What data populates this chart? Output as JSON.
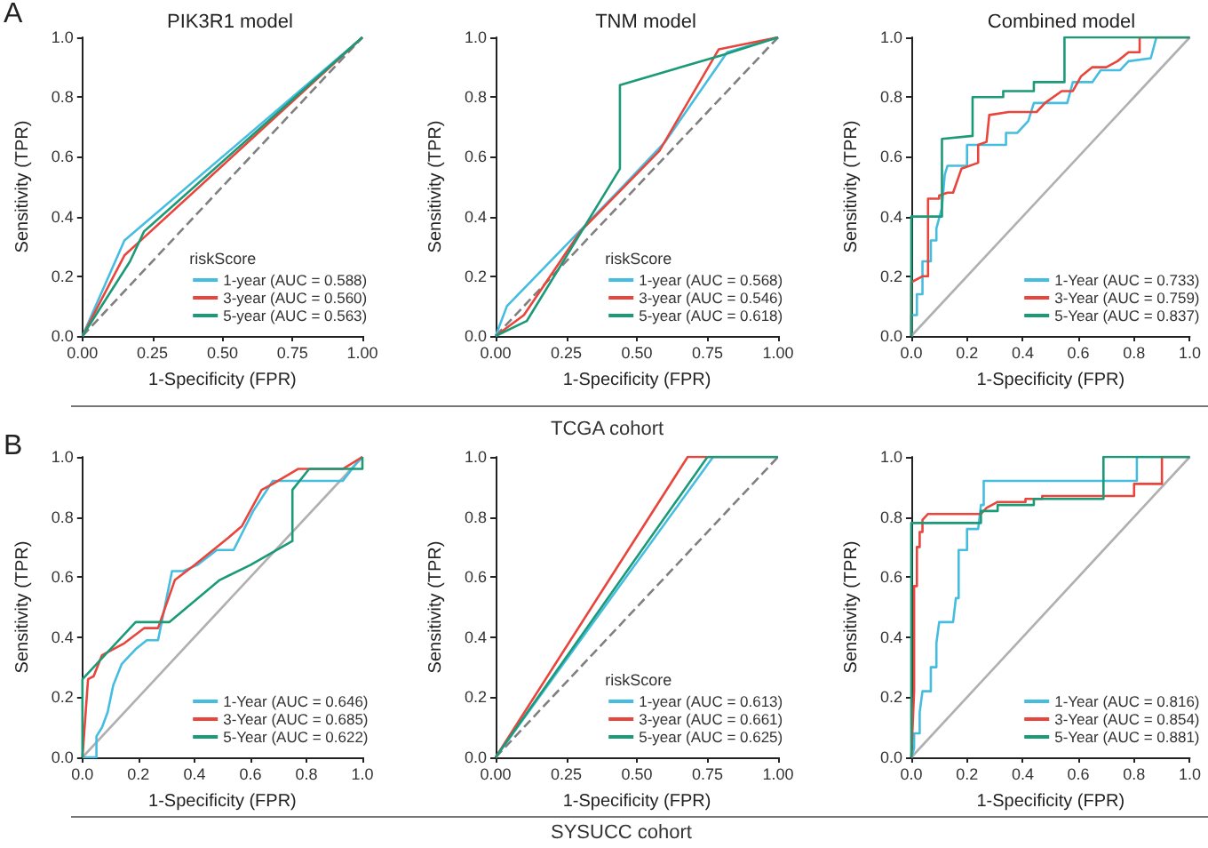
{
  "chart_data": [
    {
      "type": "line",
      "title": "PIK3R1 model",
      "xlabel": "1-Specificity (FPR)",
      "ylabel": "Sensitivity (TPR)",
      "legend_title": "riskScore",
      "legend": "bottom right",
      "marker": "none",
      "annotations": [
        "A"
      ],
      "xlim": [
        0,
        1
      ],
      "ylim": [
        0,
        1
      ],
      "xticks": [
        {
          "value": 0,
          "label": "0.00"
        },
        {
          "value": 0.25,
          "label": "0.25"
        },
        {
          "value": 0.5,
          "label": "0.50"
        },
        {
          "value": 0.75,
          "label": "0.75"
        },
        {
          "value": 1,
          "label": "1.00"
        }
      ],
      "yticks": [
        {
          "value": 0,
          "label": "0.0"
        },
        {
          "value": 0.2,
          "label": "0.2"
        },
        {
          "value": 0.4,
          "label": "0.4"
        },
        {
          "value": 0.6,
          "label": "0.6"
        },
        {
          "value": 0.8,
          "label": "0.8"
        },
        {
          "value": 1,
          "label": "1.0"
        }
      ],
      "series": [
        {
          "color": "#808080",
          "line_style": "dashed",
          "x": [
            0,
            1
          ],
          "values": [
            0,
            1
          ]
        },
        {
          "name": "1-year (AUC = 0.588)",
          "color": "#45bde0",
          "x": [
            0,
            0.15,
            1
          ],
          "values": [
            0,
            0.32,
            1
          ]
        },
        {
          "name": "3-year (AUC = 0.560)",
          "color": "#e8453c",
          "x": [
            0,
            0.15,
            0.22,
            1
          ],
          "values": [
            0,
            0.27,
            0.33,
            1
          ]
        },
        {
          "name": "5-year (AUC = 0.563)",
          "color": "#1b9a78",
          "x": [
            0,
            0.17,
            0.22,
            1
          ],
          "values": [
            0,
            0.25,
            0.35,
            1
          ]
        }
      ]
    },
    {
      "type": "line",
      "title": "TNM model",
      "xlabel": "1-Specificity (FPR)",
      "ylabel": "Sensitivity (TPR)",
      "legend_title": "riskScore",
      "legend": "bottom right",
      "marker": "none",
      "annotations": [
        "TCGA cohort"
      ],
      "xlim": [
        0,
        1
      ],
      "ylim": [
        0,
        1
      ],
      "xticks": [
        {
          "value": 0,
          "label": "0.00"
        },
        {
          "value": 0.25,
          "label": "0.25"
        },
        {
          "value": 0.5,
          "label": "0.50"
        },
        {
          "value": 0.75,
          "label": "0.75"
        },
        {
          "value": 1,
          "label": "1.00"
        }
      ],
      "yticks": [
        {
          "value": 0,
          "label": "0.0"
        },
        {
          "value": 0.2,
          "label": "0.2"
        },
        {
          "value": 0.4,
          "label": "0.4"
        },
        {
          "value": 0.6,
          "label": "0.6"
        },
        {
          "value": 0.8,
          "label": "0.8"
        },
        {
          "value": 1,
          "label": "1.0"
        }
      ],
      "series": [
        {
          "color": "#808080",
          "line_style": "dashed",
          "x": [
            0,
            1
          ],
          "values": [
            0,
            1
          ]
        },
        {
          "name": "1-year (AUC = 0.568)",
          "color": "#45bde0",
          "x": [
            0,
            0.04,
            0.45,
            0.6,
            0.82,
            1
          ],
          "values": [
            0,
            0.1,
            0.5,
            0.65,
            0.95,
            1
          ]
        },
        {
          "name": "3-year (AUC = 0.546)",
          "color": "#e8453c",
          "x": [
            0,
            0.1,
            0.3,
            0.58,
            0.79,
            1
          ],
          "values": [
            0,
            0.07,
            0.35,
            0.62,
            0.96,
            1
          ]
        },
        {
          "name": "5-year (AUC = 0.618)",
          "color": "#1b9a78",
          "x": [
            0,
            0.11,
            0.44,
            0.44,
            0.8,
            1
          ],
          "values": [
            0,
            0.05,
            0.56,
            0.84,
            0.94,
            1
          ]
        }
      ]
    },
    {
      "type": "line",
      "title": "Combined model",
      "xlabel": "1-Specificity (FPR)",
      "ylabel": "Sensitivity (TPR)",
      "legend": "bottom right",
      "marker": "none",
      "xlim": [
        0,
        1
      ],
      "ylim": [
        0,
        1
      ],
      "xticks": [
        {
          "value": 0,
          "label": "0.0"
        },
        {
          "value": 0.2,
          "label": "0.2"
        },
        {
          "value": 0.4,
          "label": "0.4"
        },
        {
          "value": 0.6,
          "label": "0.6"
        },
        {
          "value": 0.8,
          "label": "0.8"
        },
        {
          "value": 1,
          "label": "1.0"
        }
      ],
      "yticks": [
        {
          "value": 0,
          "label": "0.0"
        },
        {
          "value": 0.2,
          "label": "0.2"
        },
        {
          "value": 0.4,
          "label": "0.4"
        },
        {
          "value": 0.6,
          "label": "0.6"
        },
        {
          "value": 0.8,
          "label": "0.8"
        },
        {
          "value": 1,
          "label": "1.0"
        }
      ],
      "series": [
        {
          "color": "#b0b0b0",
          "line_style": "solid",
          "x": [
            0,
            1
          ],
          "values": [
            0,
            1
          ]
        },
        {
          "name": "1-Year (AUC = 0.733)",
          "color": "#45bde0",
          "x": [
            0,
            0,
            0.02,
            0.02,
            0.04,
            0.04,
            0.07,
            0.07,
            0.09,
            0.09,
            0.11,
            0.12,
            0.13,
            0.2,
            0.2,
            0.34,
            0.34,
            0.38,
            0.42,
            0.44,
            0.56,
            0.58,
            0.65,
            0.68,
            0.75,
            0.78,
            0.86,
            0.88,
            1
          ],
          "values": [
            0,
            0.07,
            0.07,
            0.14,
            0.14,
            0.25,
            0.25,
            0.32,
            0.32,
            0.36,
            0.43,
            0.54,
            0.57,
            0.57,
            0.64,
            0.64,
            0.68,
            0.68,
            0.72,
            0.78,
            0.78,
            0.85,
            0.85,
            0.89,
            0.89,
            0.92,
            0.93,
            1,
            1
          ]
        },
        {
          "name": "3-Year (AUC = 0.759)",
          "color": "#e8453c",
          "x": [
            0,
            0,
            0.04,
            0.06,
            0.06,
            0.1,
            0.1,
            0.13,
            0.15,
            0.18,
            0.24,
            0.24,
            0.27,
            0.28,
            0.35,
            0.45,
            0.48,
            0.54,
            0.58,
            0.61,
            0.65,
            0.7,
            0.74,
            0.78,
            0.82,
            0.82,
            1
          ],
          "values": [
            0,
            0.18,
            0.2,
            0.2,
            0.46,
            0.46,
            0.47,
            0.48,
            0.48,
            0.56,
            0.58,
            0.64,
            0.65,
            0.74,
            0.75,
            0.75,
            0.78,
            0.82,
            0.82,
            0.87,
            0.9,
            0.9,
            0.92,
            0.95,
            0.95,
            1,
            1
          ]
        },
        {
          "name": "5-Year (AUC = 0.837)",
          "color": "#1b9a78",
          "x": [
            0,
            0,
            0.11,
            0.11,
            0.22,
            0.22,
            0.33,
            0.33,
            0.44,
            0.44,
            0.55,
            0.55,
            1
          ],
          "values": [
            0,
            0.4,
            0.4,
            0.66,
            0.67,
            0.8,
            0.8,
            0.82,
            0.82,
            0.85,
            0.85,
            1,
            1
          ]
        }
      ]
    },
    {
      "type": "line",
      "xlabel": "1-Specificity (FPR)",
      "ylabel": "Sensitivity (TPR)",
      "legend": "bottom right",
      "marker": "none",
      "annotations": [
        "B"
      ],
      "xlim": [
        0,
        1
      ],
      "ylim": [
        0,
        1
      ],
      "xticks": [
        {
          "value": 0,
          "label": "0.0"
        },
        {
          "value": 0.2,
          "label": "0.2"
        },
        {
          "value": 0.4,
          "label": "0.4"
        },
        {
          "value": 0.6,
          "label": "0.6"
        },
        {
          "value": 0.8,
          "label": "0.8"
        },
        {
          "value": 1,
          "label": "1.0"
        }
      ],
      "yticks": [
        {
          "value": 0,
          "label": "0.0"
        },
        {
          "value": 0.2,
          "label": "0.2"
        },
        {
          "value": 0.4,
          "label": "0.4"
        },
        {
          "value": 0.6,
          "label": "0.6"
        },
        {
          "value": 0.8,
          "label": "0.8"
        },
        {
          "value": 1,
          "label": "1.0"
        }
      ],
      "series": [
        {
          "color": "#b0b0b0",
          "line_style": "solid",
          "x": [
            0,
            1
          ],
          "values": [
            0,
            1
          ]
        },
        {
          "name": "1-Year (AUC = 0.646)",
          "color": "#45bde0",
          "x": [
            0,
            0.05,
            0.05,
            0.07,
            0.09,
            0.11,
            0.14,
            0.19,
            0.23,
            0.27,
            0.32,
            0.36,
            0.41,
            0.48,
            0.54,
            0.61,
            0.68,
            0.93,
            0.98,
            1
          ],
          "values": [
            0,
            0,
            0.07,
            0.1,
            0.15,
            0.24,
            0.31,
            0.36,
            0.39,
            0.39,
            0.62,
            0.62,
            0.64,
            0.69,
            0.69,
            0.82,
            0.92,
            0.92,
            0.98,
            1
          ]
        },
        {
          "name": "3-Year (AUC = 0.685)",
          "color": "#e8453c",
          "x": [
            0,
            0.02,
            0.04,
            0.07,
            0.15,
            0.22,
            0.27,
            0.33,
            0.4,
            0.52,
            0.57,
            0.64,
            0.68,
            0.77,
            0.93,
            1
          ],
          "values": [
            0,
            0.26,
            0.27,
            0.34,
            0.38,
            0.43,
            0.43,
            0.59,
            0.64,
            0.73,
            0.77,
            0.89,
            0.91,
            0.96,
            0.96,
            1
          ]
        },
        {
          "name": "5-Year (AUC = 0.622)",
          "color": "#1b9a78",
          "x": [
            0,
            0,
            0.09,
            0.19,
            0.31,
            0.49,
            0.6,
            0.75,
            0.75,
            0.81,
            0.98,
            1,
            1
          ],
          "values": [
            0,
            0.26,
            0.35,
            0.45,
            0.45,
            0.59,
            0.64,
            0.72,
            0.89,
            0.96,
            0.96,
            0.96,
            1
          ]
        }
      ]
    },
    {
      "type": "line",
      "xlabel": "1-Specificity (FPR)",
      "ylabel": "Sensitivity (TPR)",
      "legend_title": "riskScore",
      "legend": "bottom right",
      "marker": "none",
      "annotations": [
        "SYSUCC cohort"
      ],
      "xlim": [
        0,
        1
      ],
      "ylim": [
        0,
        1
      ],
      "xticks": [
        {
          "value": 0,
          "label": "0.00"
        },
        {
          "value": 0.25,
          "label": "0.25"
        },
        {
          "value": 0.5,
          "label": "0.50"
        },
        {
          "value": 0.75,
          "label": "0.75"
        },
        {
          "value": 1,
          "label": "1.00"
        }
      ],
      "yticks": [
        {
          "value": 0,
          "label": "0.0"
        },
        {
          "value": 0.2,
          "label": "0.2"
        },
        {
          "value": 0.4,
          "label": "0.4"
        },
        {
          "value": 0.6,
          "label": "0.6"
        },
        {
          "value": 0.8,
          "label": "0.8"
        },
        {
          "value": 1,
          "label": "1.0"
        }
      ],
      "series": [
        {
          "color": "#808080",
          "line_style": "dashed",
          "x": [
            0,
            1
          ],
          "values": [
            0,
            1
          ]
        },
        {
          "name": "1-year (AUC = 0.613)",
          "color": "#45bde0",
          "x": [
            0,
            0.77,
            1
          ],
          "values": [
            0,
            1,
            1
          ]
        },
        {
          "name": "3-year (AUC = 0.661)",
          "color": "#e8453c",
          "x": [
            0,
            0.68,
            1
          ],
          "values": [
            0,
            1,
            1
          ]
        },
        {
          "name": "5-year (AUC = 0.625)",
          "color": "#1b9a78",
          "x": [
            0,
            0.75,
            1
          ],
          "values": [
            0,
            1,
            1
          ]
        }
      ]
    },
    {
      "type": "line",
      "xlabel": "1-Specificity (FPR)",
      "ylabel": "Sensitivity (TPR)",
      "legend": "bottom right",
      "marker": "none",
      "xlim": [
        0,
        1
      ],
      "ylim": [
        0,
        1
      ],
      "xticks": [
        {
          "value": 0,
          "label": "0.0"
        },
        {
          "value": 0.2,
          "label": "0.2"
        },
        {
          "value": 0.4,
          "label": "0.4"
        },
        {
          "value": 0.6,
          "label": "0.6"
        },
        {
          "value": 0.8,
          "label": "0.8"
        },
        {
          "value": 1,
          "label": "1.0"
        }
      ],
      "yticks": [
        {
          "value": 0,
          "label": "0.0"
        },
        {
          "value": 0.2,
          "label": "0.2"
        },
        {
          "value": 0.4,
          "label": "0.4"
        },
        {
          "value": 0.6,
          "label": "0.6"
        },
        {
          "value": 0.8,
          "label": "0.8"
        },
        {
          "value": 1,
          "label": "1.0"
        }
      ],
      "series": [
        {
          "color": "#b0b0b0",
          "line_style": "solid",
          "x": [
            0,
            1
          ],
          "values": [
            0,
            1
          ]
        },
        {
          "name": "1-Year (AUC = 0.816)",
          "color": "#45bde0",
          "x": [
            0,
            0.01,
            0.01,
            0.03,
            0.03,
            0.04,
            0.07,
            0.07,
            0.09,
            0.09,
            0.1,
            0.15,
            0.16,
            0.17,
            0.17,
            0.2,
            0.2,
            0.24,
            0.25,
            0.26,
            0.26,
            0.81,
            0.81,
            1
          ],
          "values": [
            0,
            0.03,
            0.08,
            0.08,
            0.15,
            0.22,
            0.22,
            0.3,
            0.3,
            0.38,
            0.45,
            0.45,
            0.53,
            0.53,
            0.69,
            0.69,
            0.76,
            0.76,
            0.84,
            0.84,
            0.92,
            0.92,
            1,
            1
          ]
        },
        {
          "name": "3-Year (AUC = 0.854)",
          "color": "#e8453c",
          "x": [
            0,
            0.01,
            0.01,
            0.02,
            0.02,
            0.03,
            0.03,
            0.04,
            0.04,
            0.06,
            0.25,
            0.27,
            0.31,
            0.41,
            0.41,
            0.47,
            0.47,
            0.8,
            0.8,
            0.9,
            0.9,
            1
          ],
          "values": [
            0,
            0.22,
            0.57,
            0.57,
            0.7,
            0.7,
            0.75,
            0.75,
            0.79,
            0.81,
            0.81,
            0.83,
            0.85,
            0.85,
            0.86,
            0.86,
            0.87,
            0.87,
            0.91,
            0.91,
            1,
            1
          ]
        },
        {
          "name": "5-Year (AUC = 0.881)",
          "color": "#1b9a78",
          "x": [
            0,
            0,
            0.25,
            0.25,
            0.31,
            0.31,
            0.44,
            0.44,
            0.69,
            0.69,
            1
          ],
          "values": [
            0,
            0.78,
            0.78,
            0.82,
            0.82,
            0.84,
            0.84,
            0.86,
            0.86,
            1,
            1
          ]
        }
      ]
    }
  ]
}
